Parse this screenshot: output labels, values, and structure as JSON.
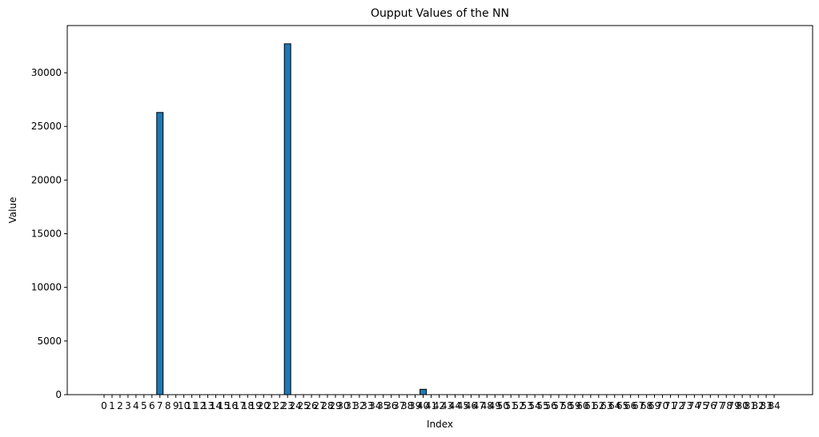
{
  "chart_data": {
    "type": "bar",
    "title": "Oupput Values of the NN",
    "xlabel": "Index",
    "ylabel": "Value",
    "ylim": [
      0,
      34400
    ],
    "yticks": [
      0,
      5000,
      10000,
      15000,
      20000,
      25000,
      30000
    ],
    "ytick_labels": [
      "0",
      "5000",
      "10000",
      "15000",
      "20000",
      "25000",
      "30000"
    ],
    "categories": [
      "0",
      "1",
      "2",
      "3",
      "4",
      "5",
      "6",
      "7",
      "8",
      "9",
      "10",
      "11",
      "12",
      "13",
      "14",
      "15",
      "16",
      "17",
      "18",
      "19",
      "20",
      "21",
      "22",
      "23",
      "24",
      "25",
      "26",
      "27",
      "28",
      "29",
      "30",
      "31",
      "32",
      "33",
      "34",
      "35",
      "36",
      "37",
      "38",
      "39",
      "40",
      "41",
      "42",
      "43",
      "44",
      "45",
      "46",
      "47",
      "48",
      "49",
      "50",
      "51",
      "52",
      "53",
      "54",
      "55",
      "56",
      "57",
      "58",
      "59",
      "60",
      "61",
      "62",
      "63",
      "64",
      "65",
      "66",
      "67",
      "68",
      "69",
      "70",
      "71",
      "72",
      "73",
      "74",
      "75",
      "76",
      "77",
      "78",
      "79",
      "80",
      "81",
      "82",
      "83",
      "84"
    ],
    "values": [
      0,
      0,
      0,
      0,
      0,
      0,
      0,
      26300,
      0,
      0,
      0,
      0,
      0,
      0,
      0,
      0,
      0,
      0,
      0,
      0,
      0,
      0,
      0,
      32700,
      0,
      0,
      0,
      0,
      0,
      0,
      0,
      0,
      0,
      0,
      0,
      0,
      0,
      0,
      0,
      0,
      500,
      0,
      0,
      0,
      0,
      0,
      0,
      0,
      0,
      0,
      0,
      0,
      0,
      0,
      0,
      0,
      0,
      0,
      0,
      0,
      0,
      0,
      0,
      0,
      0,
      0,
      0,
      0,
      0,
      0,
      0,
      0,
      0,
      0,
      0,
      0,
      0,
      0,
      0,
      0,
      0,
      0,
      0,
      0,
      0
    ],
    "bar_color": "#1f77b4",
    "edge_color": "#000000",
    "grid": false,
    "legend": "none"
  }
}
